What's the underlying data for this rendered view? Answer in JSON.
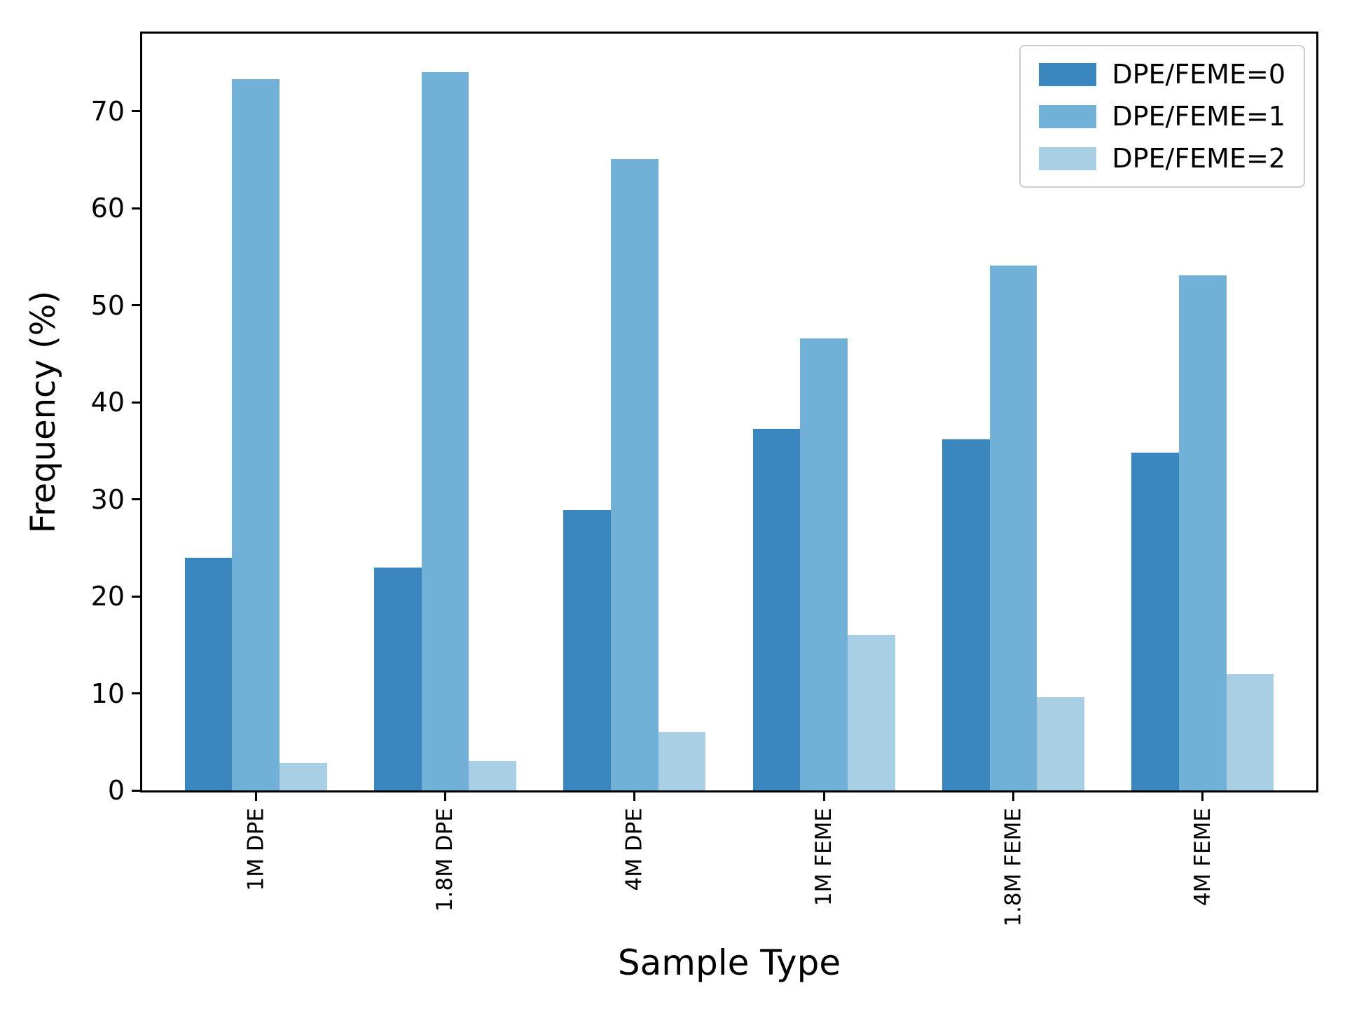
{
  "figure": {
    "background": "#ffffff",
    "spine_color": "#000000"
  },
  "chart_data": {
    "type": "bar",
    "title": "",
    "xlabel": "Sample Type",
    "ylabel": "Frequency (%)",
    "categories": [
      "1M DPE",
      "1.8M DPE",
      "4M DPE",
      "1M FEME",
      "1.8M FEME",
      "4M FEME"
    ],
    "series": [
      {
        "name": "DPE/FEME=0",
        "values": [
          24.0,
          23.0,
          28.9,
          37.3,
          36.2,
          34.8
        ]
      },
      {
        "name": "DPE/FEME=1",
        "values": [
          73.3,
          74.0,
          65.1,
          46.6,
          54.1,
          53.1
        ]
      },
      {
        "name": "DPE/FEME=2",
        "values": [
          2.8,
          3.0,
          6.0,
          16.0,
          9.6,
          12.0
        ]
      }
    ],
    "colors": [
      "#3a87c0",
      "#72b1d7",
      "#a9cfe5"
    ],
    "ylim": [
      0,
      78
    ],
    "xlim": [
      -0.6,
      5.6
    ],
    "yticks": [
      0,
      10,
      20,
      30,
      40,
      50,
      60,
      70
    ],
    "bar_width": 0.25,
    "grid": false,
    "legend_position": "upper right"
  }
}
